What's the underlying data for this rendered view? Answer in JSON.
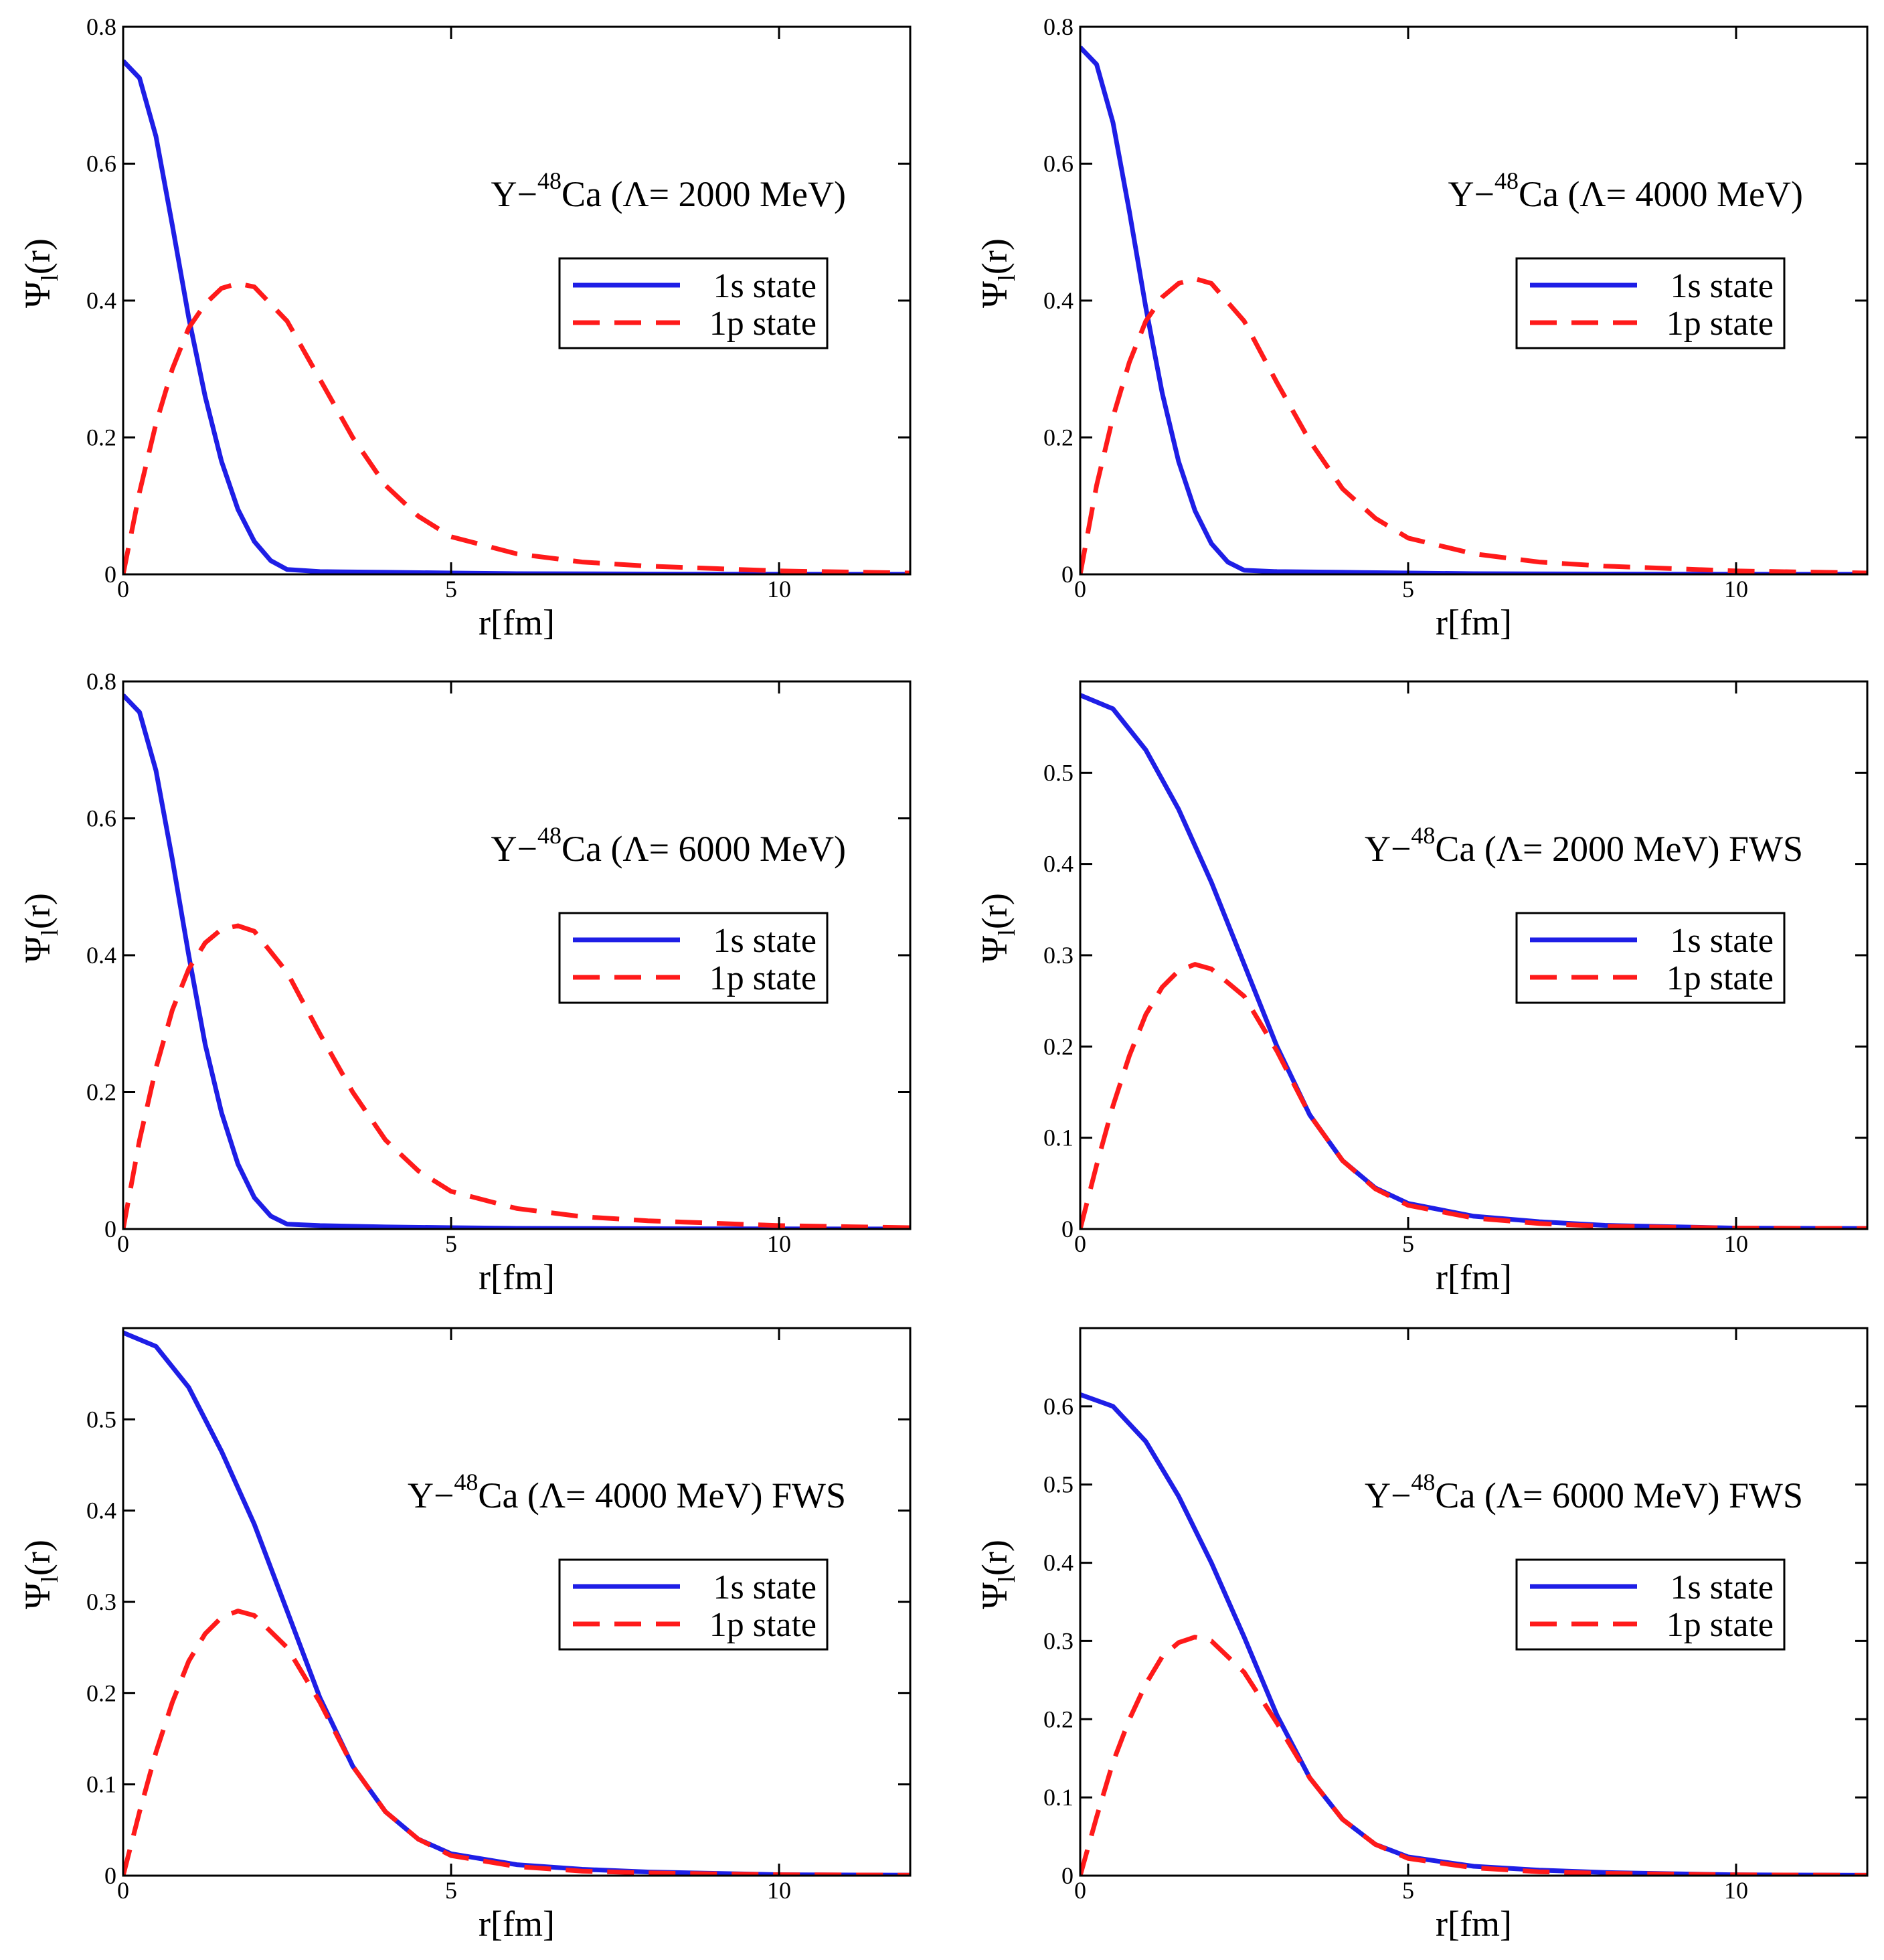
{
  "figure": {
    "xlabel": "r[fm]",
    "ylabel_main": "Ψ",
    "ylabel_sub": "l",
    "ylabel_tail": "(r)",
    "colors": {
      "s1": "#1e1ee6",
      "p1": "#ff1a1a"
    }
  },
  "chart_data": [
    {
      "type": "line",
      "title": {
        "prefix": "Y−",
        "sup": "48",
        "main": "Ca (Λ= 2000 MeV)"
      },
      "xlim": [
        0,
        12
      ],
      "ylim": [
        0,
        0.8
      ],
      "xticks": [
        0,
        5,
        10
      ],
      "yticks": [
        0,
        0.2,
        0.4,
        0.6,
        0.8
      ],
      "xticklabels": [
        "0",
        "5",
        "10"
      ],
      "yticklabels": [
        "0",
        "0.2",
        "0.4",
        "0.6",
        "0.8"
      ],
      "series": [
        {
          "name": "1s state",
          "x": [
            0,
            0.25,
            0.5,
            0.75,
            1.0,
            1.25,
            1.5,
            1.75,
            2.0,
            2.25,
            2.5,
            3,
            4,
            5,
            6,
            8,
            10,
            12
          ],
          "y": [
            0.75,
            0.725,
            0.64,
            0.51,
            0.375,
            0.26,
            0.165,
            0.095,
            0.048,
            0.02,
            0.007,
            0.004,
            0.003,
            0.002,
            0.001,
            0.0005,
            0.0002,
            0.0001
          ]
        },
        {
          "name": "1p state",
          "x": [
            0,
            0.25,
            0.5,
            0.75,
            1.0,
            1.25,
            1.5,
            1.75,
            2.0,
            2.5,
            3,
            3.5,
            4,
            4.5,
            5,
            6,
            7,
            8,
            10,
            12
          ],
          "y": [
            0.0,
            0.12,
            0.22,
            0.3,
            0.36,
            0.395,
            0.418,
            0.425,
            0.42,
            0.37,
            0.285,
            0.2,
            0.13,
            0.085,
            0.055,
            0.03,
            0.018,
            0.012,
            0.005,
            0.002
          ]
        }
      ]
    },
    {
      "type": "line",
      "title": {
        "prefix": "Y−",
        "sup": "48",
        "main": "Ca (Λ= 4000 MeV)"
      },
      "xlim": [
        0,
        12
      ],
      "ylim": [
        0,
        0.8
      ],
      "xticks": [
        0,
        5,
        10
      ],
      "yticks": [
        0,
        0.2,
        0.4,
        0.6,
        0.8
      ],
      "xticklabels": [
        "0",
        "5",
        "10"
      ],
      "yticklabels": [
        "0",
        "0.2",
        "0.4",
        "0.6",
        "0.8"
      ],
      "series": [
        {
          "name": "1s state",
          "x": [
            0,
            0.25,
            0.5,
            0.75,
            1.0,
            1.25,
            1.5,
            1.75,
            2.0,
            2.25,
            2.5,
            3,
            4,
            5,
            6,
            8,
            10,
            12
          ],
          "y": [
            0.77,
            0.745,
            0.66,
            0.53,
            0.39,
            0.265,
            0.165,
            0.093,
            0.045,
            0.018,
            0.006,
            0.004,
            0.003,
            0.002,
            0.001,
            0.0005,
            0.0002,
            0.0001
          ]
        },
        {
          "name": "1p state",
          "x": [
            0,
            0.25,
            0.5,
            0.75,
            1.0,
            1.25,
            1.5,
            1.75,
            2.0,
            2.5,
            3,
            3.5,
            4,
            4.5,
            5,
            6,
            7,
            8,
            10,
            12
          ],
          "y": [
            0.0,
            0.13,
            0.23,
            0.31,
            0.37,
            0.405,
            0.425,
            0.432,
            0.425,
            0.37,
            0.28,
            0.195,
            0.125,
            0.082,
            0.053,
            0.03,
            0.018,
            0.012,
            0.005,
            0.002
          ]
        }
      ]
    },
    {
      "type": "line",
      "title": {
        "prefix": "Y−",
        "sup": "48",
        "main": "Ca (Λ= 6000 MeV)"
      },
      "xlim": [
        0,
        12
      ],
      "ylim": [
        0,
        0.8
      ],
      "xticks": [
        0,
        5,
        10
      ],
      "yticks": [
        0,
        0.2,
        0.4,
        0.6,
        0.8
      ],
      "xticklabels": [
        "0",
        "5",
        "10"
      ],
      "yticklabels": [
        "0",
        "0.2",
        "0.4",
        "0.6",
        "0.8"
      ],
      "series": [
        {
          "name": "1s state",
          "x": [
            0,
            0.25,
            0.5,
            0.75,
            1.0,
            1.25,
            1.5,
            1.75,
            2.0,
            2.25,
            2.5,
            3,
            4,
            5,
            6,
            8,
            10,
            12
          ],
          "y": [
            0.78,
            0.755,
            0.67,
            0.54,
            0.4,
            0.27,
            0.17,
            0.095,
            0.046,
            0.019,
            0.007,
            0.005,
            0.003,
            0.002,
            0.001,
            0.0005,
            0.0002,
            0.0001
          ]
        },
        {
          "name": "1p state",
          "x": [
            0,
            0.25,
            0.5,
            0.75,
            1.0,
            1.25,
            1.5,
            1.75,
            2.0,
            2.5,
            3,
            3.5,
            4,
            4.5,
            5,
            6,
            7,
            8,
            10,
            12
          ],
          "y": [
            0.0,
            0.13,
            0.235,
            0.32,
            0.38,
            0.418,
            0.438,
            0.443,
            0.435,
            0.375,
            0.285,
            0.2,
            0.13,
            0.085,
            0.055,
            0.03,
            0.018,
            0.012,
            0.005,
            0.002
          ]
        }
      ]
    },
    {
      "type": "line",
      "title": {
        "prefix": "Y−",
        "sup": "48",
        "main": "Ca (Λ= 2000 MeV) FWS"
      },
      "xlim": [
        0,
        12
      ],
      "ylim": [
        0,
        0.6
      ],
      "xticks": [
        0,
        5,
        10
      ],
      "yticks": [
        0,
        0.1,
        0.2,
        0.3,
        0.4,
        0.5
      ],
      "xticklabels": [
        "0",
        "5",
        "10"
      ],
      "yticklabels": [
        "0",
        "0.1",
        "0.2",
        "0.3",
        "0.4",
        "0.5"
      ],
      "series": [
        {
          "name": "1s state",
          "x": [
            0,
            0.5,
            1.0,
            1.5,
            2.0,
            2.5,
            3.0,
            3.5,
            4.0,
            4.5,
            5.0,
            6,
            7,
            8,
            10,
            12
          ],
          "y": [
            0.585,
            0.57,
            0.525,
            0.46,
            0.38,
            0.29,
            0.2,
            0.125,
            0.075,
            0.045,
            0.028,
            0.014,
            0.008,
            0.004,
            0.001,
            0.0005
          ]
        },
        {
          "name": "1p state",
          "x": [
            0,
            0.25,
            0.5,
            0.75,
            1.0,
            1.25,
            1.5,
            1.75,
            2.0,
            2.5,
            3.0,
            3.5,
            4.0,
            4.5,
            5.0,
            6,
            7,
            8,
            10,
            12
          ],
          "y": [
            0.0,
            0.07,
            0.135,
            0.19,
            0.235,
            0.265,
            0.283,
            0.29,
            0.285,
            0.255,
            0.195,
            0.125,
            0.075,
            0.044,
            0.026,
            0.012,
            0.006,
            0.003,
            0.001,
            0.0005
          ]
        }
      ]
    },
    {
      "type": "line",
      "title": {
        "prefix": "Y−",
        "sup": "48",
        "main": "Ca (Λ= 4000 MeV) FWS"
      },
      "xlim": [
        0,
        12
      ],
      "ylim": [
        0,
        0.6
      ],
      "xticks": [
        0,
        5,
        10
      ],
      "yticks": [
        0,
        0.1,
        0.2,
        0.3,
        0.4,
        0.5
      ],
      "xticklabels": [
        "0",
        "5",
        "10"
      ],
      "yticklabels": [
        "0",
        "0.1",
        "0.2",
        "0.3",
        "0.4",
        "0.5"
      ],
      "series": [
        {
          "name": "1s state",
          "x": [
            0,
            0.5,
            1.0,
            1.5,
            2.0,
            2.5,
            3.0,
            3.5,
            4.0,
            4.5,
            5.0,
            6,
            7,
            8,
            10,
            12
          ],
          "y": [
            0.595,
            0.58,
            0.535,
            0.465,
            0.385,
            0.29,
            0.195,
            0.12,
            0.07,
            0.04,
            0.024,
            0.012,
            0.007,
            0.004,
            0.001,
            0.0005
          ]
        },
        {
          "name": "1p state",
          "x": [
            0,
            0.25,
            0.5,
            0.75,
            1.0,
            1.25,
            1.5,
            1.75,
            2.0,
            2.5,
            3.0,
            3.5,
            4.0,
            4.5,
            5.0,
            6,
            7,
            8,
            10,
            12
          ],
          "y": [
            0.0,
            0.07,
            0.135,
            0.19,
            0.235,
            0.265,
            0.283,
            0.29,
            0.285,
            0.25,
            0.19,
            0.12,
            0.07,
            0.04,
            0.022,
            0.01,
            0.005,
            0.003,
            0.001,
            0.0005
          ]
        }
      ]
    },
    {
      "type": "line",
      "title": {
        "prefix": "Y−",
        "sup": "48",
        "main": "Ca (Λ= 6000 MeV) FWS"
      },
      "xlim": [
        0,
        12
      ],
      "ylim": [
        0,
        0.7
      ],
      "xticks": [
        0,
        5,
        10
      ],
      "yticks": [
        0,
        0.1,
        0.2,
        0.3,
        0.4,
        0.5,
        0.6
      ],
      "xticklabels": [
        "0",
        "5",
        "10"
      ],
      "yticklabels": [
        "0",
        "0.1",
        "0.2",
        "0.3",
        "0.4",
        "0.5",
        "0.6"
      ],
      "series": [
        {
          "name": "1s state",
          "x": [
            0,
            0.5,
            1.0,
            1.5,
            2.0,
            2.5,
            3.0,
            3.5,
            4.0,
            4.5,
            5.0,
            6,
            7,
            8,
            10,
            12
          ],
          "y": [
            0.615,
            0.6,
            0.555,
            0.485,
            0.4,
            0.305,
            0.205,
            0.125,
            0.072,
            0.04,
            0.024,
            0.012,
            0.007,
            0.004,
            0.001,
            0.0005
          ]
        },
        {
          "name": "1p state",
          "x": [
            0,
            0.25,
            0.5,
            0.75,
            1.0,
            1.25,
            1.5,
            1.75,
            2.0,
            2.5,
            3.0,
            3.5,
            4.0,
            4.5,
            5.0,
            6,
            7,
            8,
            10,
            12
          ],
          "y": [
            0.0,
            0.075,
            0.145,
            0.2,
            0.245,
            0.28,
            0.298,
            0.305,
            0.3,
            0.26,
            0.195,
            0.125,
            0.072,
            0.04,
            0.022,
            0.01,
            0.005,
            0.003,
            0.001,
            0.0005
          ]
        }
      ]
    }
  ]
}
